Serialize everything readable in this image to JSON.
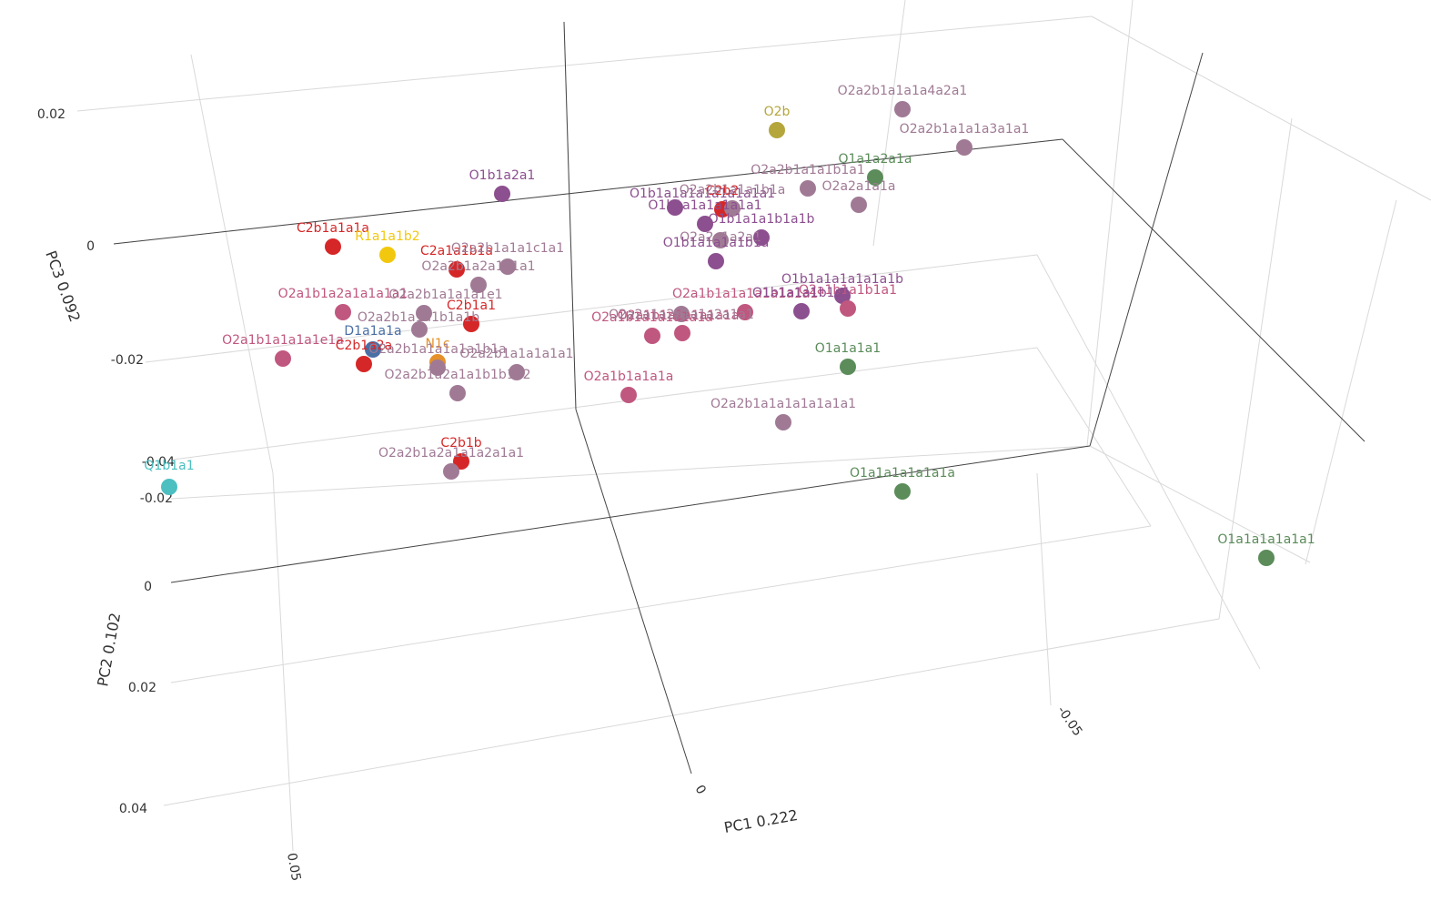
{
  "chart_data": {
    "type": "scatter",
    "projection": "3d",
    "axes": {
      "x": {
        "label": "PC1 0.222",
        "ticks": [
          "0.05",
          "0",
          "-0.05"
        ]
      },
      "y": {
        "label": "PC2 0.102",
        "ticks": [
          "-0.02",
          "0",
          "0.02",
          "0.04"
        ]
      },
      "z": {
        "label": "PC3 0.092",
        "ticks": [
          "0.02",
          "0",
          "-0.02",
          "-0.04"
        ]
      }
    },
    "colors": {
      "C": "#d62728",
      "O1a": "#5b8c5a",
      "O1b": "#8c4f8f",
      "O2a1": "#c0577f",
      "O2a2": "#a07a95",
      "O2b": "#b5a63c",
      "R": "#f2c80f",
      "N": "#e5902a",
      "D": "#4a6fa5",
      "Q": "#4cbfc0"
    },
    "points": [
      {
        "label": "O2a2b1a1a1a4a2a1",
        "group": "O2a2"
      },
      {
        "label": "O2b",
        "group": "O2b"
      },
      {
        "label": "O2a2b1a1a1a3a1a1",
        "group": "O2a2"
      },
      {
        "label": "O1a1a2a1a",
        "group": "O1a"
      },
      {
        "label": "O2a2b1a1a1b1a1",
        "group": "O2a2"
      },
      {
        "label": "O2a2a1a1a",
        "group": "O2a2"
      },
      {
        "label": "O1b1a2a1",
        "group": "O1b"
      },
      {
        "label": "O1b1a1a1a1a1a1a1a1",
        "group": "O1b"
      },
      {
        "label": "C2b2",
        "group": "C"
      },
      {
        "label": "O1b1a1a1a1a1a1",
        "group": "O1b"
      },
      {
        "label": "O2a2b1a1a1b1a",
        "group": "O2a2"
      },
      {
        "label": "O1b1a1a1b1a1b",
        "group": "O1b"
      },
      {
        "label": "O2a2a1a2a1",
        "group": "O2a2"
      },
      {
        "label": "O1b1a1a1a1b1a",
        "group": "O1b"
      },
      {
        "label": "C2b1a1a1a",
        "group": "C"
      },
      {
        "label": "R1a1a1b2",
        "group": "R"
      },
      {
        "label": "C2a1a1b1a",
        "group": "C"
      },
      {
        "label": "O2a2b1a1a1c1a1",
        "group": "O2a2"
      },
      {
        "label": "O2a2b1a2a1a1a1",
        "group": "O2a2"
      },
      {
        "label": "O2a1b1a2a1a1a1a1",
        "group": "O2a1"
      },
      {
        "label": "O2a2b1a1a1a1e1",
        "group": "O2a2"
      },
      {
        "label": "O2a2b1a1a1b1a1b",
        "group": "O2a2"
      },
      {
        "label": "C2b1a1",
        "group": "C"
      },
      {
        "label": "D1a1a1a",
        "group": "D"
      },
      {
        "label": "O2a1b1a1a1a1e1a",
        "group": "O2a1"
      },
      {
        "label": "C2b1a2a",
        "group": "C"
      },
      {
        "label": "N1c",
        "group": "N"
      },
      {
        "label": "O2a2b1a1a1a1a1b1a",
        "group": "O2a2"
      },
      {
        "label": "O2a2b1a1a1a1a1",
        "group": "O2a2"
      },
      {
        "label": "O2a2b1a2a1a1b1b1b2",
        "group": "O2a2"
      },
      {
        "label": "O2a1b1a1a1a1a1a1",
        "group": "O2a1"
      },
      {
        "label": "O2a1b1a1a1a1a1a",
        "group": "O2a1"
      },
      {
        "label": "O2a2a1a2a1a1a2a1a1",
        "group": "O2a2"
      },
      {
        "label": "O2a1b1a1a1a1a1a1a1",
        "group": "O2a1"
      },
      {
        "label": "O1b1a1a1a1a1a1b",
        "group": "O1b"
      },
      {
        "label": "O2a1b1a1b1a1",
        "group": "O2a1"
      },
      {
        "label": "O1b1a1a1b1a1",
        "group": "O1b"
      },
      {
        "label": "O1a1a1a1",
        "group": "O1a"
      },
      {
        "label": "O2a1b1a1a1a",
        "group": "O2a1"
      },
      {
        "label": "O2a2b1a1a1a1a1a1a1",
        "group": "O2a2"
      },
      {
        "label": "C2b1b",
        "group": "C"
      },
      {
        "label": "O2a2b1a2a1a1a2a1a1",
        "group": "O2a2"
      },
      {
        "label": "Q1b1a1",
        "group": "Q"
      },
      {
        "label": "O1a1a1a1a1a1a",
        "group": "O1a"
      },
      {
        "label": "O1a1a1a1a1a1",
        "group": "O1a"
      }
    ]
  }
}
